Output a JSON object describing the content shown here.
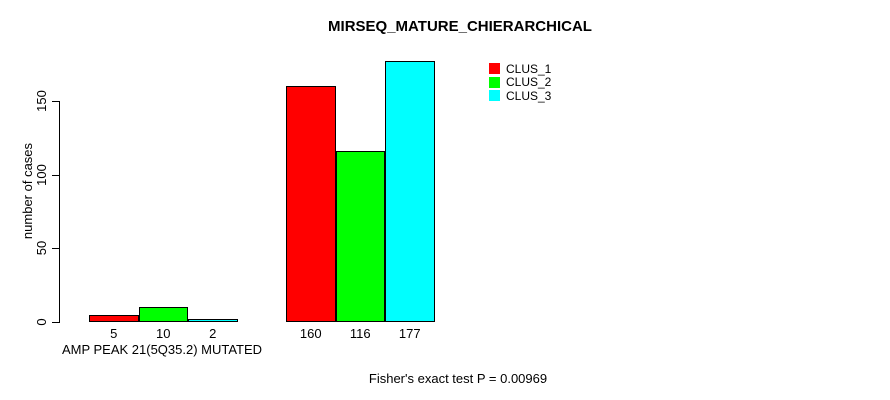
{
  "chart_data": {
    "type": "bar",
    "title": "MIRSEQ_MATURE_CHIERARCHICAL",
    "ylabel": "number of cases",
    "xlabel": "AMP PEAK 21(5Q35.2) MUTATED",
    "annotation": "Fisher's exact test P = 0.00969",
    "categories": [
      "AMP PEAK 21(5Q35.2) MUTATED",
      ""
    ],
    "series": [
      {
        "name": "CLUS_1",
        "color": "#ff0000",
        "values": [
          5,
          160
        ]
      },
      {
        "name": "CLUS_2",
        "color": "#00ff00",
        "values": [
          10,
          116
        ]
      },
      {
        "name": "CLUS_3",
        "color": "#00ffff",
        "values": [
          2,
          177
        ]
      }
    ],
    "yticks": [
      0,
      50,
      100,
      150
    ],
    "ylim": [
      0,
      180
    ],
    "grid": false,
    "legend_position": "topright",
    "axis_color": "#000000",
    "bar_border_color": "#000000",
    "background_color": "#ffffff"
  }
}
